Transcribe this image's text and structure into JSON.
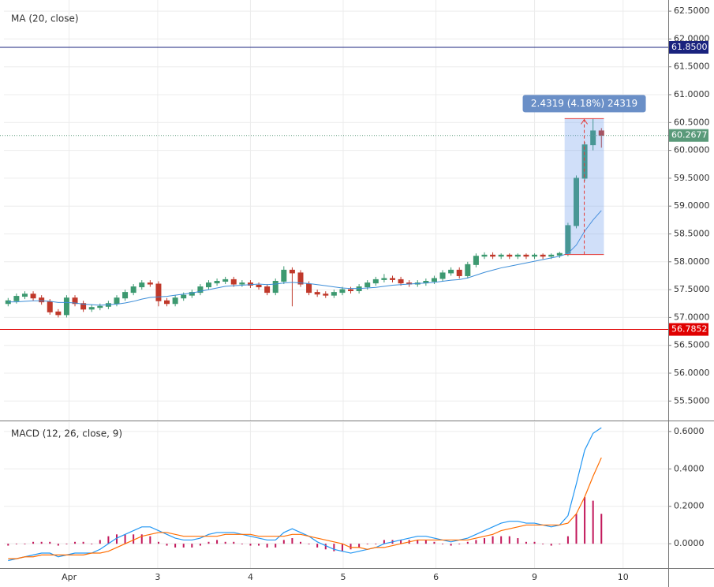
{
  "chart_data": [
    {
      "type": "candlestick",
      "title": "MA (20, close)",
      "x": [
        0,
        1,
        2,
        3,
        4,
        5,
        6,
        7,
        8,
        9,
        10,
        11,
        12,
        13,
        14,
        15,
        16,
        17,
        18,
        19,
        20,
        21,
        22,
        23,
        24,
        25,
        26,
        27,
        28,
        29,
        30,
        31,
        32,
        33,
        34,
        35,
        36,
        37,
        38,
        39,
        40,
        41,
        42,
        43,
        44,
        45,
        46,
        47,
        48,
        49,
        50,
        51,
        52,
        53,
        54,
        55,
        56,
        57,
        58,
        59,
        60,
        61,
        62,
        63,
        64,
        65,
        66,
        67,
        68,
        69,
        70,
        71
      ],
      "open": [
        57.25,
        57.3,
        57.38,
        57.42,
        57.35,
        57.28,
        57.1,
        57.05,
        57.35,
        57.25,
        57.15,
        57.18,
        57.2,
        57.25,
        57.35,
        57.45,
        57.55,
        57.62,
        57.6,
        57.3,
        57.25,
        57.35,
        57.4,
        57.45,
        57.55,
        57.62,
        57.65,
        57.68,
        57.6,
        57.62,
        57.58,
        57.55,
        57.45,
        57.65,
        57.85,
        57.8,
        57.6,
        57.45,
        57.42,
        57.4,
        57.45,
        57.5,
        57.48,
        57.55,
        57.62,
        57.68,
        57.7,
        57.68,
        57.62,
        57.6,
        57.62,
        57.65,
        57.7,
        57.8,
        57.85,
        57.75,
        57.95,
        58.1,
        58.12,
        58.1,
        58.12,
        58.1,
        58.12,
        58.1,
        58.12,
        58.1,
        58.12,
        58.15,
        58.65,
        59.5,
        60.1,
        60.35
      ],
      "high": [
        57.35,
        57.43,
        57.47,
        57.47,
        57.4,
        57.33,
        57.15,
        57.4,
        57.4,
        57.3,
        57.23,
        57.25,
        57.3,
        57.4,
        57.5,
        57.6,
        57.67,
        57.67,
        57.65,
        57.35,
        57.4,
        57.45,
        57.5,
        57.6,
        57.67,
        57.7,
        57.73,
        57.73,
        57.67,
        57.67,
        57.63,
        57.6,
        57.7,
        57.92,
        57.9,
        57.85,
        57.65,
        57.5,
        57.47,
        57.5,
        57.55,
        57.55,
        57.6,
        57.67,
        57.73,
        57.78,
        57.75,
        57.73,
        57.67,
        57.67,
        57.7,
        57.75,
        57.85,
        57.9,
        57.9,
        58.0,
        58.15,
        58.17,
        58.17,
        58.15,
        58.15,
        58.15,
        58.15,
        58.15,
        58.15,
        58.15,
        58.18,
        58.7,
        59.55,
        60.15,
        60.57,
        60.4
      ],
      "low": [
        57.2,
        57.25,
        57.33,
        57.3,
        57.23,
        57.05,
        57.0,
        57.0,
        57.2,
        57.1,
        57.1,
        57.13,
        57.15,
        57.2,
        57.3,
        57.4,
        57.5,
        57.55,
        57.2,
        57.2,
        57.2,
        57.3,
        57.35,
        57.4,
        57.5,
        57.57,
        57.6,
        57.55,
        57.55,
        57.53,
        57.5,
        57.4,
        57.4,
        57.6,
        57.2,
        57.55,
        57.4,
        57.37,
        57.35,
        57.35,
        57.4,
        57.43,
        57.43,
        57.5,
        57.57,
        57.63,
        57.63,
        57.57,
        57.55,
        57.55,
        57.57,
        57.6,
        57.65,
        57.75,
        57.7,
        57.7,
        57.9,
        58.05,
        58.05,
        58.05,
        58.05,
        58.05,
        58.05,
        58.05,
        58.05,
        58.05,
        58.07,
        58.1,
        58.6,
        59.45,
        60.0,
        60.05
      ],
      "close": [
        57.3,
        57.38,
        57.42,
        57.35,
        57.28,
        57.1,
        57.05,
        57.35,
        57.25,
        57.15,
        57.18,
        57.2,
        57.25,
        57.35,
        57.45,
        57.55,
        57.62,
        57.6,
        57.3,
        57.25,
        57.35,
        57.4,
        57.45,
        57.55,
        57.62,
        57.65,
        57.68,
        57.6,
        57.62,
        57.58,
        57.55,
        57.45,
        57.65,
        57.85,
        57.8,
        57.6,
        57.45,
        57.42,
        57.4,
        57.45,
        57.5,
        57.48,
        57.55,
        57.62,
        57.68,
        57.7,
        57.68,
        57.62,
        57.6,
        57.62,
        57.65,
        57.7,
        57.8,
        57.85,
        57.75,
        57.95,
        58.1,
        58.12,
        58.1,
        58.12,
        58.1,
        58.12,
        58.1,
        58.12,
        58.1,
        58.12,
        58.15,
        58.65,
        59.5,
        60.1,
        60.35,
        60.27
      ],
      "up_color": "#3d9970",
      "down_color": "#c0392b",
      "ma": {
        "color": "#3c8dd8",
        "values": [
          57.28,
          57.28,
          57.29,
          57.3,
          57.3,
          57.29,
          57.27,
          57.27,
          57.26,
          57.24,
          57.23,
          57.22,
          57.23,
          57.24,
          57.26,
          57.29,
          57.33,
          57.36,
          57.37,
          57.38,
          57.4,
          57.42,
          57.44,
          57.47,
          57.5,
          57.53,
          57.56,
          57.57,
          57.58,
          57.59,
          57.6,
          57.59,
          57.6,
          57.62,
          57.63,
          57.62,
          57.61,
          57.59,
          57.57,
          57.55,
          57.53,
          57.52,
          57.52,
          57.53,
          57.54,
          57.56,
          57.58,
          57.59,
          57.6,
          57.61,
          57.62,
          57.63,
          57.65,
          57.67,
          57.68,
          57.71,
          57.76,
          57.81,
          57.85,
          57.89,
          57.92,
          57.95,
          57.98,
          58.01,
          58.04,
          58.07,
          58.1,
          58.15,
          58.3,
          58.55,
          58.75,
          58.92
        ]
      },
      "xlim": [
        -0.5,
        79
      ],
      "xticks": [
        {
          "value": 7.3,
          "label": "Apr"
        },
        {
          "value": 17.9,
          "label": "3"
        },
        {
          "value": 29,
          "label": "4"
        },
        {
          "value": 40.1,
          "label": "5"
        },
        {
          "value": 51.2,
          "label": "6"
        },
        {
          "value": 63,
          "label": "9"
        },
        {
          "value": 73.6,
          "label": "10"
        }
      ],
      "ylim": [
        55.15,
        62.7
      ],
      "yticks": [
        {
          "value": 62.5,
          "label": "62.5000"
        },
        {
          "value": 62,
          "label": "62.0000"
        },
        {
          "value": 61.5,
          "label": "61.5000"
        },
        {
          "value": 61,
          "label": "61.0000"
        },
        {
          "value": 60.5,
          "label": "60.5000"
        },
        {
          "value": 60,
          "label": "60.0000"
        },
        {
          "value": 59.5,
          "label": "59.5000"
        },
        {
          "value": 59,
          "label": "59.0000"
        },
        {
          "value": 58.5,
          "label": "58.5000"
        },
        {
          "value": 58,
          "label": "58.0000"
        },
        {
          "value": 57.5,
          "label": "57.5000"
        },
        {
          "value": 57,
          "label": "57.0000"
        },
        {
          "value": 56.5,
          "label": "56.5000"
        },
        {
          "value": 56,
          "label": "56.0000"
        },
        {
          "value": 55.5,
          "label": "55.5000"
        }
      ],
      "grid": true,
      "lines": [
        {
          "value": 61.85,
          "label": "61.8500",
          "color": "#1a237e"
        },
        {
          "value": 56.7852,
          "label": "56.7852",
          "color": "#e00000"
        }
      ],
      "last_price": {
        "value": 60.2677,
        "label": "60.2677",
        "color": "#5a9a7a"
      },
      "measure": {
        "label": "2.4319 (4.18%) 24319",
        "from": 58.13,
        "to": 60.57,
        "x0": 66.6,
        "x1": 71.3,
        "color": "#6a8fc7"
      }
    },
    {
      "type": "macd",
      "title": "MACD (12, 26, close, 9)",
      "series": [
        {
          "color": "#2196f3",
          "values": [
            -0.09,
            -0.08,
            -0.07,
            -0.06,
            -0.05,
            -0.05,
            -0.07,
            -0.06,
            -0.05,
            -0.05,
            -0.05,
            -0.03,
            0.0,
            0.03,
            0.05,
            0.07,
            0.09,
            0.09,
            0.07,
            0.05,
            0.03,
            0.02,
            0.02,
            0.03,
            0.05,
            0.06,
            0.06,
            0.06,
            0.05,
            0.04,
            0.03,
            0.02,
            0.02,
            0.06,
            0.08,
            0.06,
            0.04,
            0.01,
            -0.01,
            -0.03,
            -0.04,
            -0.05,
            -0.04,
            -0.03,
            -0.02,
            0.0,
            0.01,
            0.02,
            0.03,
            0.04,
            0.04,
            0.03,
            0.02,
            0.01,
            0.02,
            0.03,
            0.05,
            0.07,
            0.09,
            0.11,
            0.12,
            0.12,
            0.11,
            0.11,
            0.1,
            0.09,
            0.1,
            0.15,
            0.32,
            0.5,
            0.59,
            0.62
          ]
        },
        {
          "color": "#ff6d00",
          "values": [
            -0.08,
            -0.08,
            -0.07,
            -0.07,
            -0.06,
            -0.06,
            -0.06,
            -0.06,
            -0.06,
            -0.06,
            -0.05,
            -0.05,
            -0.04,
            -0.02,
            0.0,
            0.02,
            0.04,
            0.05,
            0.06,
            0.06,
            0.05,
            0.04,
            0.04,
            0.04,
            0.04,
            0.04,
            0.05,
            0.05,
            0.05,
            0.05,
            0.04,
            0.04,
            0.04,
            0.04,
            0.05,
            0.05,
            0.04,
            0.03,
            0.02,
            0.01,
            0.0,
            -0.02,
            -0.02,
            -0.03,
            -0.02,
            -0.02,
            -0.01,
            0.0,
            0.01,
            0.02,
            0.02,
            0.02,
            0.02,
            0.02,
            0.02,
            0.02,
            0.03,
            0.04,
            0.05,
            0.07,
            0.08,
            0.09,
            0.1,
            0.1,
            0.1,
            0.1,
            0.1,
            0.11,
            0.16,
            0.25,
            0.36,
            0.46
          ]
        }
      ],
      "histogram": {
        "color": "#c2185b",
        "values": [
          -0.01,
          0,
          0,
          0.01,
          0.01,
          0.01,
          -0.01,
          0,
          0.01,
          0.01,
          0,
          0.02,
          0.04,
          0.05,
          0.05,
          0.05,
          0.05,
          0.04,
          0.01,
          -0.01,
          -0.02,
          -0.02,
          -0.02,
          -0.01,
          0.01,
          0.02,
          0.01,
          0.01,
          0,
          -0.01,
          -0.01,
          -0.02,
          -0.02,
          0.02,
          0.03,
          0.01,
          0,
          -0.02,
          -0.03,
          -0.04,
          -0.04,
          -0.03,
          -0.02,
          0,
          0,
          0.02,
          0.02,
          0.02,
          0.02,
          0.02,
          0.02,
          0.01,
          0,
          -0.01,
          0,
          0.01,
          0.02,
          0.03,
          0.04,
          0.04,
          0.04,
          0.03,
          0.01,
          0.01,
          0,
          -0.01,
          0,
          0.04,
          0.16,
          0.25,
          0.23,
          0.16
        ]
      },
      "ylim": [
        -0.13,
        0.65
      ],
      "yticks": [
        {
          "value": 0.6,
          "label": "0.6000"
        },
        {
          "value": 0.4,
          "label": "0.4000"
        },
        {
          "value": 0.2,
          "label": "0.2000"
        },
        {
          "value": 0,
          "label": "0.0000"
        }
      ],
      "grid": true
    }
  ]
}
